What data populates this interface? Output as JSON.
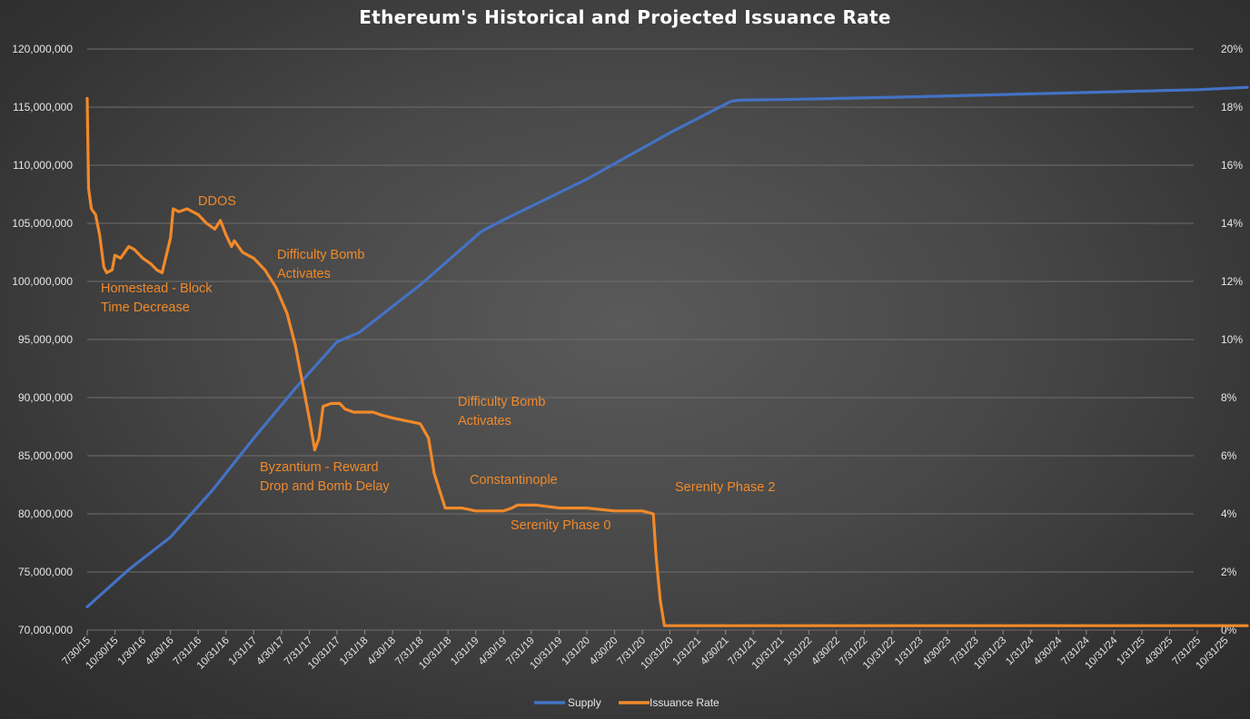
{
  "chart_data": {
    "type": "line",
    "title": "Ethereum's Historical and Projected Issuance Rate",
    "colors": {
      "supply": "#4472c4",
      "issuance": "#f0892a"
    },
    "grid": true,
    "legend_position": "bottom",
    "y_left": {
      "ylim": [
        70000000,
        120000000
      ],
      "ticks": [
        "70,000,000",
        "75,000,000",
        "80,000,000",
        "85,000,000",
        "90,000,000",
        "95,000,000",
        "100,000,000",
        "105,000,000",
        "110,000,000",
        "115,000,000",
        "120,000,000"
      ]
    },
    "y_right": {
      "ylim": [
        0,
        20
      ],
      "ticks": [
        "0%",
        "2%",
        "4%",
        "6%",
        "8%",
        "10%",
        "12%",
        "14%",
        "16%",
        "18%",
        "20%"
      ]
    },
    "x_ticks": [
      "7/30/15",
      "10/30/15",
      "1/30/16",
      "4/30/16",
      "7/31/16",
      "10/31/16",
      "1/31/17",
      "4/30/17",
      "7/31/17",
      "10/31/17",
      "1/31/18",
      "4/30/18",
      "7/31/18",
      "10/31/18",
      "1/31/19",
      "4/30/19",
      "7/31/19",
      "10/31/19",
      "1/31/20",
      "4/30/20",
      "7/31/20",
      "10/31/20",
      "1/31/21",
      "4/30/21",
      "7/31/21",
      "10/31/21",
      "1/31/22",
      "4/30/22",
      "7/31/22",
      "10/31/22",
      "1/31/23",
      "4/30/23",
      "7/31/23",
      "10/31/23",
      "1/31/24",
      "4/30/24",
      "7/31/24",
      "10/31/24",
      "1/31/25",
      "4/30/25",
      "7/31/25",
      "10/31/25"
    ],
    "series": [
      {
        "name": "Supply",
        "axis": "left",
        "points": [
          [
            0,
            72000000
          ],
          [
            1.5,
            75200000
          ],
          [
            3,
            78000000
          ],
          [
            4.5,
            82000000
          ],
          [
            6,
            86500000
          ],
          [
            7.5,
            90800000
          ],
          [
            9,
            94800000
          ],
          [
            9.8,
            95600000
          ],
          [
            12,
            99700000
          ],
          [
            14.2,
            104300000
          ],
          [
            15,
            105300000
          ],
          [
            18,
            108800000
          ],
          [
            21,
            112800000
          ],
          [
            23.2,
            115500000
          ],
          [
            23.5,
            115600000
          ],
          [
            25,
            115650000
          ],
          [
            30,
            115900000
          ],
          [
            35,
            116200000
          ],
          [
            40,
            116500000
          ],
          [
            41.8,
            116700000
          ]
        ]
      },
      {
        "name": "Issuance Rate",
        "axis": "right",
        "points": [
          [
            0,
            18.3
          ],
          [
            0.05,
            15.2
          ],
          [
            0.15,
            14.5
          ],
          [
            0.3,
            14.3
          ],
          [
            0.45,
            13.6
          ],
          [
            0.6,
            12.5
          ],
          [
            0.7,
            12.3
          ],
          [
            0.9,
            12.4
          ],
          [
            1.0,
            12.9
          ],
          [
            1.2,
            12.8
          ],
          [
            1.5,
            13.2
          ],
          [
            1.7,
            13.1
          ],
          [
            2.0,
            12.8
          ],
          [
            2.3,
            12.6
          ],
          [
            2.5,
            12.4
          ],
          [
            2.7,
            12.3
          ],
          [
            3.0,
            13.5
          ],
          [
            3.1,
            14.5
          ],
          [
            3.3,
            14.4
          ],
          [
            3.6,
            14.5
          ],
          [
            4.0,
            14.3
          ],
          [
            4.3,
            14.0
          ],
          [
            4.6,
            13.8
          ],
          [
            4.8,
            14.1
          ],
          [
            5.0,
            13.6
          ],
          [
            5.2,
            13.2
          ],
          [
            5.3,
            13.4
          ],
          [
            5.6,
            13.0
          ],
          [
            6.0,
            12.8
          ],
          [
            6.4,
            12.4
          ],
          [
            6.8,
            11.8
          ],
          [
            7.2,
            10.9
          ],
          [
            7.5,
            9.8
          ],
          [
            7.7,
            8.8
          ],
          [
            8.0,
            7.3
          ],
          [
            8.2,
            6.2
          ],
          [
            8.35,
            6.6
          ],
          [
            8.5,
            7.7
          ],
          [
            8.8,
            7.8
          ],
          [
            9.1,
            7.8
          ],
          [
            9.3,
            7.6
          ],
          [
            9.6,
            7.5
          ],
          [
            10.0,
            7.5
          ],
          [
            10.3,
            7.5
          ],
          [
            10.6,
            7.4
          ],
          [
            11.0,
            7.3
          ],
          [
            11.5,
            7.2
          ],
          [
            12.0,
            7.1
          ],
          [
            12.3,
            6.6
          ],
          [
            12.5,
            5.4
          ],
          [
            12.7,
            4.8
          ],
          [
            12.9,
            4.2
          ],
          [
            13.5,
            4.2
          ],
          [
            14.0,
            4.1
          ],
          [
            15.0,
            4.1
          ],
          [
            15.3,
            4.2
          ],
          [
            15.5,
            4.3
          ],
          [
            16.2,
            4.3
          ],
          [
            17.0,
            4.2
          ],
          [
            18.0,
            4.2
          ],
          [
            19.0,
            4.1
          ],
          [
            20.0,
            4.1
          ],
          [
            20.4,
            4.0
          ],
          [
            20.5,
            2.5
          ],
          [
            20.65,
            1.0
          ],
          [
            20.8,
            0.15
          ],
          [
            25,
            0.15
          ],
          [
            30,
            0.15
          ],
          [
            35,
            0.15
          ],
          [
            41.8,
            0.15
          ]
        ]
      }
    ],
    "annotations": [
      {
        "lines": [
          "Homestead - Block",
          "Time Decrease"
        ]
      },
      {
        "lines": [
          "DDOS"
        ]
      },
      {
        "lines": [
          "Difficulty Bomb",
          "Activates"
        ]
      },
      {
        "lines": [
          "Byzantium - Reward",
          "Drop and Bomb Delay"
        ]
      },
      {
        "lines": [
          "Difficulty Bomb",
          "Activates"
        ]
      },
      {
        "lines": [
          "Constantinople"
        ]
      },
      {
        "lines": [
          "Serenity Phase 0"
        ]
      },
      {
        "lines": [
          "Serenity Phase 2"
        ]
      }
    ],
    "legend": [
      "Supply",
      "Issuance Rate"
    ]
  }
}
